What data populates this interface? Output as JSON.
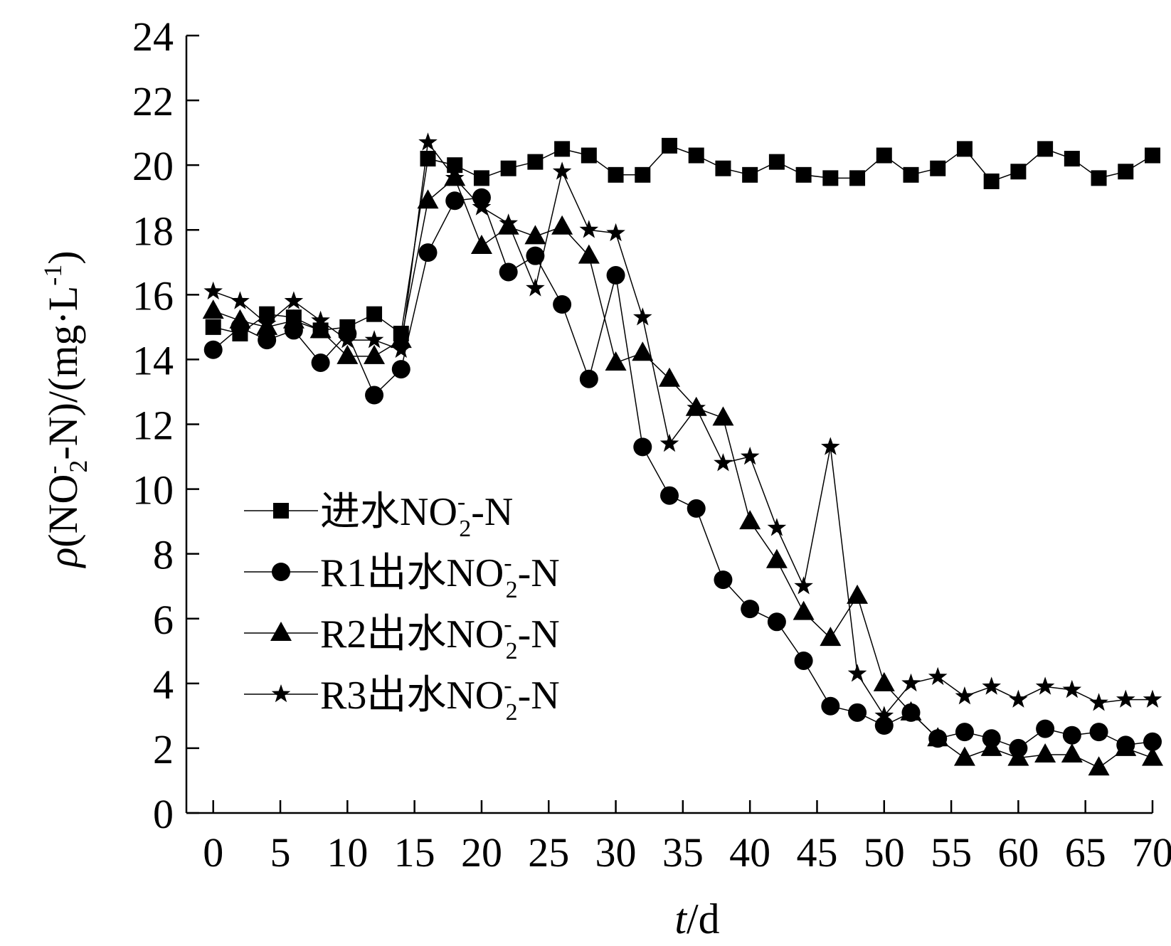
{
  "chart_data": {
    "type": "line",
    "xlabel_italic": "t",
    "xlabel_rest": "/d",
    "ylabel": {
      "rho": "ρ",
      "pre": "(NO",
      "sup": "-",
      "sub": "2",
      "post": "-N)/(mg·L",
      "unit_sup": "-1",
      "close": ")"
    },
    "xlim": [
      -2,
      70
    ],
    "ylim": [
      0,
      24
    ],
    "xticks": [
      0,
      5,
      10,
      15,
      20,
      25,
      30,
      35,
      40,
      45,
      50,
      55,
      60,
      65,
      70
    ],
    "yticks": [
      0,
      2,
      4,
      6,
      8,
      10,
      12,
      14,
      16,
      18,
      20,
      22,
      24
    ],
    "legend_position": "lower-left",
    "x": [
      0,
      2,
      4,
      6,
      8,
      10,
      12,
      14,
      16,
      18,
      20,
      22,
      24,
      26,
      28,
      30,
      32,
      34,
      36,
      38,
      40,
      42,
      44,
      46,
      48,
      50,
      52,
      54,
      56,
      58,
      60,
      62,
      64,
      66,
      68,
      70
    ],
    "series": [
      {
        "name_pre": "进水NO",
        "name_sup": "-",
        "name_sub": "2",
        "name_post": "-N",
        "marker": "square",
        "values": [
          15.0,
          14.8,
          15.4,
          15.3,
          14.9,
          15.0,
          15.4,
          14.8,
          20.2,
          20.0,
          19.6,
          19.9,
          20.1,
          20.5,
          20.3,
          19.7,
          19.7,
          20.6,
          20.3,
          19.9,
          19.7,
          20.1,
          19.7,
          19.6,
          19.6,
          20.3,
          19.7,
          19.9,
          20.5,
          19.5,
          19.8,
          20.5,
          20.2,
          19.6,
          19.8,
          20.3
        ]
      },
      {
        "name_pre": "R1出水NO",
        "name_sup": "-",
        "name_sub": "2",
        "name_post": "-N",
        "marker": "circle",
        "values": [
          14.3,
          15.0,
          14.6,
          14.9,
          13.9,
          14.8,
          12.9,
          13.7,
          17.3,
          18.9,
          19.0,
          16.7,
          17.2,
          15.7,
          13.4,
          16.6,
          11.3,
          9.8,
          9.4,
          7.2,
          6.3,
          5.9,
          4.7,
          3.3,
          3.1,
          2.7,
          3.1,
          2.3,
          2.5,
          2.3,
          2.0,
          2.6,
          2.4,
          2.5,
          2.1,
          2.2
        ]
      },
      {
        "name_pre": "R2出水NO",
        "name_sup": "-",
        "name_sub": "2",
        "name_post": "-N",
        "marker": "triangle",
        "values": [
          15.5,
          15.2,
          15.0,
          15.2,
          14.9,
          14.1,
          14.1,
          14.6,
          18.9,
          19.6,
          17.5,
          18.1,
          17.8,
          18.1,
          17.2,
          13.9,
          14.2,
          13.4,
          12.5,
          12.2,
          9.0,
          7.8,
          6.2,
          5.4,
          6.7,
          4.0,
          3.1,
          2.3,
          1.7,
          2.0,
          1.7,
          1.8,
          1.8,
          1.4,
          2.0,
          1.7
        ]
      },
      {
        "name_pre": "R3出水NO",
        "name_sup": "-",
        "name_sub": "2",
        "name_post": "-N",
        "marker": "star",
        "values": [
          16.1,
          15.8,
          15.1,
          15.8,
          15.2,
          14.6,
          14.6,
          14.3,
          20.7,
          19.6,
          18.7,
          18.2,
          16.2,
          19.8,
          18.0,
          17.9,
          15.3,
          11.4,
          12.5,
          10.8,
          11.0,
          8.8,
          7.0,
          11.3,
          4.3,
          3.0,
          4.0,
          4.2,
          3.6,
          3.9,
          3.5,
          3.9,
          3.8,
          3.4,
          3.5,
          3.5
        ]
      }
    ]
  }
}
